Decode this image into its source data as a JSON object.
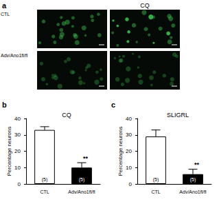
{
  "panels": [
    "a",
    "b",
    "c"
  ],
  "image_panel": {
    "column_headers": [
      null,
      "CQ"
    ],
    "row_labels": [
      "CTL",
      "Adv/Ano1fl/fl"
    ]
  },
  "chart_data": [
    {
      "type": "bar",
      "title": "CQ",
      "y_label": "Percentage neurons",
      "categories": [
        "CTL",
        "Adv/Ano1fl/fl"
      ],
      "values": [
        33,
        10
      ],
      "errors": [
        2,
        3
      ],
      "colors": [
        "#ffffff",
        "#000000"
      ],
      "bar_annotations": [
        "(5)",
        "(5)"
      ],
      "significance": [
        null,
        "**"
      ],
      "ylim": [
        0,
        40
      ],
      "yticks": [
        0,
        10,
        20,
        30,
        40
      ]
    },
    {
      "type": "bar",
      "title": "SLIGRL",
      "y_label": "Percentage neurons",
      "categories": [
        "CTL",
        "Adv/Ano1fl/fl"
      ],
      "values": [
        29,
        6
      ],
      "errors": [
        4,
        3
      ],
      "colors": [
        "#ffffff",
        "#000000"
      ],
      "bar_annotations": [
        "(5)",
        "(5)"
      ],
      "significance": [
        null,
        "**"
      ],
      "ylim": [
        0,
        40
      ],
      "yticks": [
        0,
        10,
        20,
        30,
        40
      ]
    }
  ]
}
